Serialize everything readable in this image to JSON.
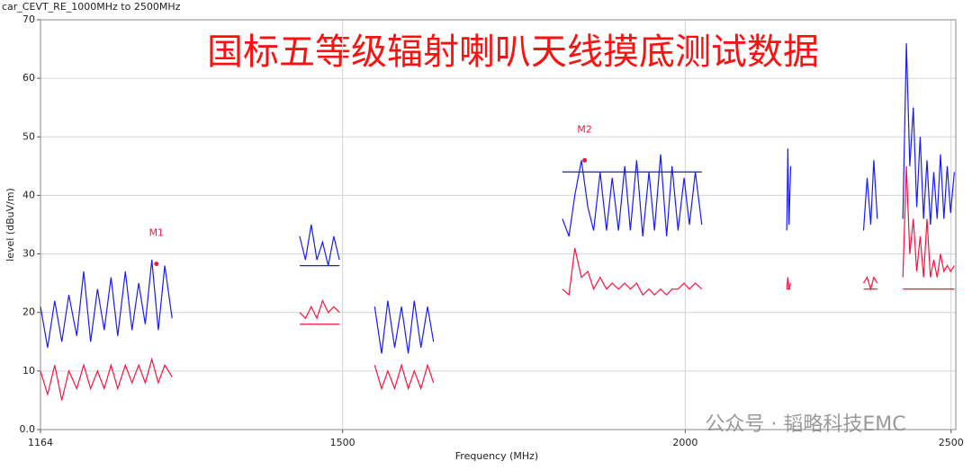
{
  "chart_data": {
    "type": "line",
    "title": "car_CEVT_RE_1000MHz to 2500MHz",
    "annotation": "国标五等级辐射喇叭天线摸底测试数据",
    "watermark": "公众号 · 韬略科技EMC",
    "xlabel": "Frequency (MHz)",
    "ylabel": "level (dBuV/m)",
    "xlog": true,
    "grid": true,
    "xlim": [
      1164,
      2510
    ],
    "ylim": [
      0,
      70
    ],
    "xticks": [
      1164,
      1500,
      2000,
      2500
    ],
    "yticks": [
      {
        "value": 0,
        "label": "0.0"
      },
      10,
      20,
      30,
      40,
      50,
      60,
      70
    ],
    "x": [
      1164,
      1171,
      1178,
      1185,
      1192,
      1200,
      1207,
      1214,
      1221,
      1228,
      1235,
      1242,
      1250,
      1257,
      1264,
      1271,
      1278,
      1285,
      1292,
      1300,
      1320,
      1447,
      1454,
      1461,
      1468,
      1475,
      1482,
      1489,
      1496,
      1520,
      1541,
      1550,
      1558,
      1567,
      1576,
      1585,
      1593,
      1602,
      1611,
      1619,
      1700,
      1804,
      1814,
      1823,
      1833,
      1843,
      1852,
      1862,
      1872,
      1881,
      1891,
      1901,
      1910,
      1920,
      1930,
      1940,
      1949,
      1959,
      1969,
      1978,
      1988,
      1998,
      2007,
      2017,
      2028,
      2100,
      2178,
      2180,
      2182,
      2185,
      2250,
      2323,
      2330,
      2337,
      2343,
      2350,
      2380,
      2401,
      2408,
      2415,
      2422,
      2429,
      2436,
      2443,
      2450,
      2457,
      2464,
      2471,
      2478,
      2485,
      2492,
      2499,
      2507
    ],
    "series": [
      {
        "color": "#1a1aff",
        "values": [
          21,
          14,
          22,
          15,
          23,
          16,
          27,
          15,
          24,
          17,
          26,
          16,
          27,
          17,
          25,
          18,
          29,
          17,
          28,
          19,
          null,
          33,
          29,
          35,
          29,
          32,
          28,
          33,
          29,
          null,
          21,
          13,
          22,
          14,
          21,
          13,
          22,
          14,
          21,
          15,
          null,
          36,
          33,
          40,
          46,
          38,
          34,
          44,
          34,
          43,
          34,
          45,
          34,
          46,
          33,
          44,
          34,
          47,
          33,
          45,
          34,
          43,
          35,
          44,
          35,
          null,
          34,
          48,
          35,
          45,
          null,
          34,
          43,
          35,
          46,
          36,
          null,
          36,
          66,
          45,
          55,
          38,
          50,
          36,
          46,
          35,
          44,
          36,
          47,
          36,
          45,
          37,
          44
        ]
      },
      {
        "color": "#ff1040",
        "values": [
          10,
          6,
          11,
          5,
          10,
          7,
          11,
          7,
          10,
          7,
          11,
          7,
          11,
          8,
          11,
          8,
          12,
          8,
          11,
          9,
          null,
          20,
          19,
          21,
          19,
          22,
          20,
          21,
          20,
          null,
          11,
          7,
          10,
          7,
          11,
          7,
          10,
          7,
          11,
          8,
          null,
          24,
          23,
          31,
          26,
          27,
          24,
          26,
          24,
          25,
          24,
          25,
          24,
          25,
          23,
          24,
          23,
          24,
          23,
          24,
          24,
          25,
          24,
          25,
          24,
          null,
          24,
          26,
          24,
          25,
          null,
          25,
          26,
          24,
          26,
          25,
          null,
          26,
          45,
          30,
          36,
          27,
          33,
          26,
          36,
          26,
          29,
          26,
          30,
          27,
          28,
          27,
          28
        ]
      }
    ],
    "limit_lines": [
      {
        "color": "#1a1aff",
        "y": 28,
        "x": [
          1447,
          1496
        ]
      },
      {
        "color": "#ff1040",
        "y": 18,
        "x": [
          1447,
          1496
        ]
      },
      {
        "color": "#1a1aff",
        "y": 44,
        "x": [
          1804,
          2028
        ]
      },
      {
        "color": "#ff1040",
        "y": 24,
        "x": [
          2178,
          2185
        ]
      },
      {
        "color": "#ff1040",
        "y": 24,
        "x": [
          2323,
          2350
        ]
      },
      {
        "color": "#ff1040",
        "y": 24,
        "x": [
          2401,
          2507
        ]
      }
    ],
    "markers": [
      {
        "label": "M1",
        "x": 1283,
        "y": 28.3,
        "color": "#ff1040"
      },
      {
        "label": "M2",
        "x": 1838,
        "y": 46,
        "color": "#ff1040"
      }
    ]
  }
}
